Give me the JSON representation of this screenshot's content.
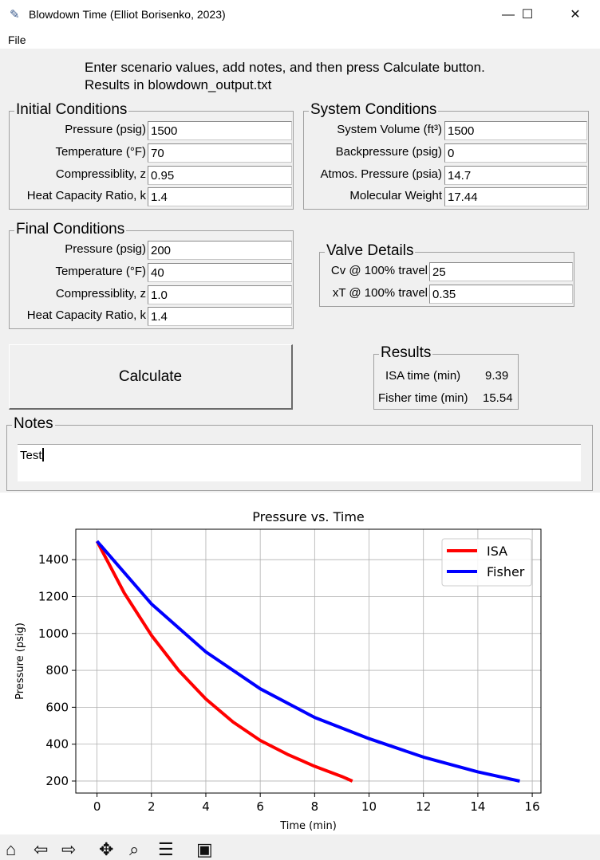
{
  "window": {
    "title": "Blowdown Time (Elliot Borisenko, 2023)",
    "min": "—",
    "max": "☐",
    "close": "✕"
  },
  "menu": {
    "file": "File"
  },
  "instructions": {
    "line1": "Enter scenario values, add notes, and then press Calculate button.",
    "line2": "Results in blowdown_output.txt"
  },
  "initial": {
    "title": "Initial Conditions",
    "rows": [
      {
        "label": "Pressure (psig)",
        "value": "1500"
      },
      {
        "label": "Temperature (°F)",
        "value": "70"
      },
      {
        "label": "Compressiblity, z",
        "value": "0.95"
      },
      {
        "label": "Heat Capacity Ratio, k",
        "value": "1.4"
      }
    ]
  },
  "system": {
    "title": "System Conditions",
    "rows": [
      {
        "label": "System Volume (ft³)",
        "value": "1500"
      },
      {
        "label": "Backpressure (psig)",
        "value": "0"
      },
      {
        "label": "Atmos. Pressure (psia)",
        "value": "14.7"
      },
      {
        "label": "Molecular Weight",
        "value": "17.44"
      }
    ]
  },
  "final": {
    "title": "Final Conditions",
    "rows": [
      {
        "label": "Pressure (psig)",
        "value": "200"
      },
      {
        "label": "Temperature (°F)",
        "value": "40"
      },
      {
        "label": "Compressiblity, z",
        "value": "1.0"
      },
      {
        "label": "Heat Capacity Ratio, k",
        "value": "1.4"
      }
    ]
  },
  "valve": {
    "title": "Valve Details",
    "rows": [
      {
        "label": "Cv @ 100% travel",
        "value": "25"
      },
      {
        "label": "xT @ 100% travel",
        "value": "0.35"
      }
    ]
  },
  "calculate_label": "Calculate",
  "results": {
    "title": "Results",
    "isa_label": "ISA time (min)",
    "isa_value": "9.39",
    "fisher_label": "Fisher time (min)",
    "fisher_value": "15.54"
  },
  "notes": {
    "title": "Notes",
    "value": "Test"
  },
  "toolbar_icons": [
    "home-icon",
    "back-icon",
    "forward-icon",
    "pan-icon",
    "zoom-icon",
    "configure-icon",
    "save-icon"
  ],
  "chart_data": {
    "type": "line",
    "title": "Pressure vs. Time",
    "xlabel": "Time (min)",
    "ylabel": "Pressure (psig)",
    "xlim": [
      -0.78,
      16.32
    ],
    "ylim": [
      135,
      1565
    ],
    "xticks": [
      0,
      2,
      4,
      6,
      8,
      10,
      12,
      14,
      16
    ],
    "yticks": [
      200,
      400,
      600,
      800,
      1000,
      1200,
      1400
    ],
    "grid": true,
    "legend_position": "upper right",
    "series": [
      {
        "name": "ISA",
        "color": "#ff0000",
        "x": [
          0,
          1,
          2,
          3,
          4,
          5,
          6,
          7,
          8,
          9,
          9.39
        ],
        "y": [
          1500,
          1220,
          990,
          800,
          645,
          520,
          420,
          345,
          280,
          225,
          200
        ]
      },
      {
        "name": "Fisher",
        "color": "#0000ff",
        "x": [
          0,
          2,
          4,
          6,
          8,
          10,
          12,
          14,
          15.54
        ],
        "y": [
          1500,
          1160,
          900,
          700,
          545,
          430,
          330,
          250,
          200
        ]
      }
    ]
  }
}
